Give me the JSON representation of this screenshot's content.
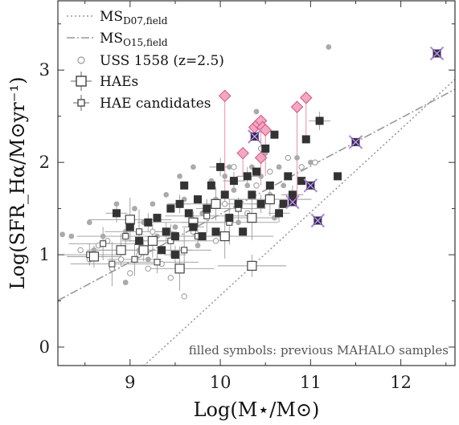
{
  "chart_data": {
    "type": "scatter",
    "xlabel": "Log(M⋆/M⊙)",
    "ylabel": "Log(SFR_Hα/M⊙yr⁻¹)",
    "xlim": [
      8.2,
      12.6
    ],
    "ylim": [
      -0.2,
      3.75
    ],
    "x_ticks": [
      "9",
      "10",
      "11",
      "12"
    ],
    "y_ticks": [
      "0",
      "1",
      "2",
      "3"
    ],
    "legend": [
      {
        "label": "MS",
        "sub": "D07,field",
        "style": "dotted-line"
      },
      {
        "label": "MS",
        "sub": "O15,field",
        "style": "dashdot-line"
      },
      {
        "label": "USS 1558 (z=2.5)",
        "style": "open-circle"
      },
      {
        "label": "HAEs",
        "style": "open-square-errorbar"
      },
      {
        "label": "HAE candidates",
        "style": "small-square-errorbar"
      }
    ],
    "annotation": "filled symbols: previous MAHALO samples",
    "lines": [
      {
        "name": "MS_D07,field",
        "slope": 0.9,
        "intercept": -8.44,
        "color": "#999999",
        "dash": "dotted"
      },
      {
        "name": "MS_O15,field",
        "slope": 0.52,
        "intercept": -3.76,
        "color": "#999999",
        "dash": "dashdot"
      }
    ],
    "series": [
      {
        "name": "previous_haes",
        "marker": "filled-square",
        "color": "#333333",
        "points": [
          [
            8.85,
            1.45
          ],
          [
            9.0,
            1.3
          ],
          [
            9.1,
            1.15
          ],
          [
            9.2,
            1.35
          ],
          [
            9.3,
            1.4
          ],
          [
            9.35,
            1.05
          ],
          [
            9.4,
            1.25
          ],
          [
            9.45,
            1.5
          ],
          [
            9.5,
            1.2
          ],
          [
            9.55,
            1.55
          ],
          [
            9.6,
            1.75
          ],
          [
            9.65,
            1.45
          ],
          [
            9.7,
            1.3
          ],
          [
            9.75,
            1.6
          ],
          [
            9.8,
            1.2
          ],
          [
            9.85,
            1.5
          ],
          [
            9.9,
            1.75
          ],
          [
            9.95,
            1.25
          ],
          [
            10.0,
            1.95
          ],
          [
            10.05,
            1.65
          ],
          [
            10.1,
            1.4
          ],
          [
            10.15,
            1.8
          ],
          [
            10.2,
            1.55
          ],
          [
            10.25,
            1.25
          ],
          [
            10.3,
            1.85
          ],
          [
            10.35,
            1.65
          ],
          [
            10.4,
            1.9
          ],
          [
            10.45,
            1.55
          ],
          [
            10.5,
            2.15
          ],
          [
            10.6,
            2.3
          ],
          [
            10.65,
            1.45
          ],
          [
            10.7,
            1.55
          ],
          [
            10.75,
            1.85
          ],
          [
            10.8,
            1.65
          ],
          [
            10.9,
            1.8
          ],
          [
            10.95,
            2.25
          ],
          [
            11.1,
            2.45
          ],
          [
            11.3,
            1.85
          ],
          [
            10.55,
            1.75
          ],
          [
            9.5,
            1.0
          ]
        ]
      },
      {
        "name": "previous_field_points",
        "marker": "filled-circle",
        "color": "#aaaaaa",
        "points": [
          [
            8.25,
            1.22
          ],
          [
            8.35,
            1.2
          ],
          [
            8.55,
            1.35
          ],
          [
            8.6,
            1.05
          ],
          [
            8.7,
            1.2
          ],
          [
            8.85,
            1.55
          ],
          [
            8.95,
            1.25
          ],
          [
            9.05,
            1.5
          ],
          [
            9.1,
            1.05
          ],
          [
            9.15,
            1.35
          ],
          [
            9.25,
            1.55
          ],
          [
            9.3,
            1.2
          ],
          [
            9.4,
            1.65
          ],
          [
            9.5,
            1.3
          ],
          [
            9.55,
            1.85
          ],
          [
            9.6,
            1.6
          ],
          [
            9.7,
            1.95
          ],
          [
            9.8,
            1.45
          ],
          [
            9.9,
            1.8
          ],
          [
            9.95,
            1.6
          ],
          [
            10.05,
            1.85
          ],
          [
            10.1,
            1.95
          ],
          [
            10.15,
            1.7
          ],
          [
            10.2,
            1.35
          ],
          [
            10.25,
            2.1
          ],
          [
            10.3,
            1.75
          ],
          [
            10.35,
            1.95
          ],
          [
            10.45,
            1.85
          ],
          [
            10.5,
            2.1
          ],
          [
            10.55,
            1.65
          ],
          [
            10.6,
            1.4
          ],
          [
            10.65,
            1.95
          ],
          [
            10.7,
            1.75
          ],
          [
            10.85,
            2.05
          ],
          [
            11.0,
            2.0
          ],
          [
            11.2,
            3.25
          ],
          [
            9.2,
            0.95
          ],
          [
            8.95,
            0.7
          ],
          [
            9.75,
            1.1
          ],
          [
            10.4,
            2.55
          ]
        ]
      },
      {
        "name": "uss1558",
        "marker": "open-circle",
        "color": "#999999",
        "points": [
          [
            8.45,
            1.05
          ],
          [
            8.55,
            0.95
          ],
          [
            8.65,
            1.1
          ],
          [
            8.8,
            0.85
          ],
          [
            8.9,
            0.95
          ],
          [
            9.0,
            0.8
          ],
          [
            9.1,
            1.0
          ],
          [
            9.2,
            0.85
          ],
          [
            9.35,
            0.9
          ],
          [
            9.45,
            0.75
          ],
          [
            9.6,
            0.55
          ],
          [
            9.7,
            1.25
          ],
          [
            9.85,
            1.45
          ],
          [
            9.95,
            1.15
          ],
          [
            10.05,
            1.55
          ],
          [
            10.15,
            1.95
          ],
          [
            10.3,
            1.45
          ],
          [
            10.4,
            1.75
          ],
          [
            10.45,
            2.15
          ],
          [
            10.55,
            1.9
          ],
          [
            10.75,
            2.05
          ],
          [
            10.9,
            1.95
          ],
          [
            11.05,
            2.0
          ],
          [
            8.75,
            1.15
          ],
          [
            9.25,
            1.25
          ]
        ]
      },
      {
        "name": "haes",
        "marker": "open-square",
        "color": "#444444",
        "points": [
          [
            8.6,
            0.98
          ],
          [
            8.9,
            1.05
          ],
          [
            9.0,
            1.38
          ],
          [
            9.15,
            1.05
          ],
          [
            9.25,
            1.15
          ],
          [
            9.55,
            0.85
          ],
          [
            9.7,
            1.35
          ],
          [
            9.95,
            1.55
          ],
          [
            10.35,
            1.4
          ],
          [
            10.35,
            0.88
          ],
          [
            10.55,
            1.6
          ],
          [
            10.05,
            1.2
          ]
        ]
      },
      {
        "name": "hae_candidates",
        "marker": "small-open-square",
        "color": "#444444",
        "points": [
          [
            8.55,
            1.0
          ],
          [
            8.7,
            1.12
          ],
          [
            8.8,
            0.9
          ],
          [
            8.95,
            1.2
          ],
          [
            9.05,
            0.95
          ],
          [
            9.1,
            1.25
          ],
          [
            9.3,
            0.92
          ],
          [
            9.45,
            1.15
          ],
          [
            9.6,
            1.05
          ],
          [
            9.75,
            1.2
          ],
          [
            9.85,
            1.42
          ],
          [
            10.1,
            1.35
          ],
          [
            10.2,
            1.5
          ]
        ]
      },
      {
        "name": "dust_corrected",
        "marker": "pink-diamond",
        "color": "#f4a7c2",
        "points": [
          [
            10.05,
            2.72
          ],
          [
            10.25,
            2.1
          ],
          [
            10.38,
            2.38
          ],
          [
            10.42,
            2.42
          ],
          [
            10.45,
            2.45
          ],
          [
            10.47,
            2.38
          ],
          [
            10.5,
            2.35
          ],
          [
            10.45,
            2.05
          ],
          [
            10.85,
            2.6
          ],
          [
            10.95,
            2.7
          ]
        ]
      },
      {
        "name": "special",
        "marker": "purple-square-x",
        "color": "#6b2fa0",
        "points": [
          [
            10.38,
            2.28
          ],
          [
            10.8,
            1.57
          ],
          [
            11.0,
            1.75
          ],
          [
            11.08,
            1.37
          ],
          [
            11.5,
            2.22
          ],
          [
            12.4,
            3.18
          ]
        ]
      }
    ],
    "drop_lines": [
      [
        10.05,
        2.72,
        1.55
      ],
      [
        10.25,
        2.1,
        1.85
      ],
      [
        10.38,
        2.38,
        2.28
      ],
      [
        10.45,
        2.45,
        1.75
      ],
      [
        10.5,
        2.35,
        1.85
      ],
      [
        10.85,
        2.6,
        1.57
      ],
      [
        10.95,
        2.7,
        2.25
      ]
    ],
    "grid": false
  }
}
